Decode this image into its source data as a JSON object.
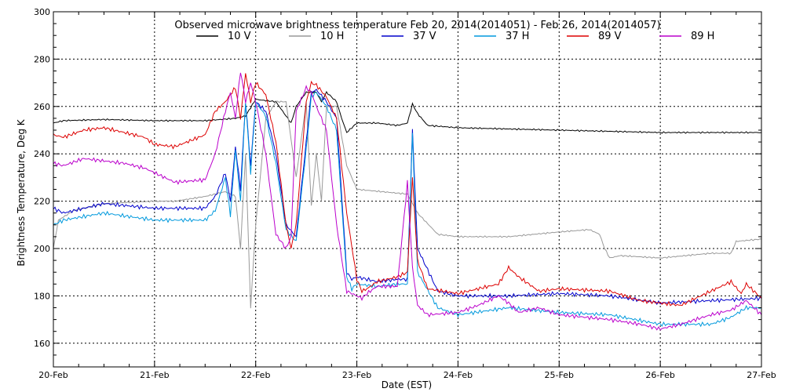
{
  "chart_data": {
    "type": "line",
    "title": "Observed microwave brightness temperature Feb 20, 2014(2014051) - Feb 26, 2014(2014057)",
    "xlabel": "Date (EST)",
    "ylabel": "Brightness Temperature, Deg K",
    "x_tick_labels": [
      "20-Feb",
      "21-Feb",
      "22-Feb",
      "23-Feb",
      "24-Feb",
      "25-Feb",
      "26-Feb",
      "27-Feb"
    ],
    "x_unit": "days since 20-Feb 00:00",
    "xlim": [
      0,
      7
    ],
    "ylim": [
      150,
      300
    ],
    "y_ticks": [
      160,
      180,
      200,
      220,
      240,
      260,
      280,
      300
    ],
    "grid": true,
    "legend_position": "top",
    "series": [
      {
        "name": "10 V",
        "color": "#000000",
        "x": [
          0,
          0.1,
          0.5,
          1,
          1.5,
          1.8,
          1.9,
          2,
          2.2,
          2.3,
          2.35,
          2.4,
          2.5,
          2.6,
          2.65,
          2.7,
          2.75,
          2.8,
          2.85,
          2.9,
          3,
          3.2,
          3.4,
          3.5,
          3.55,
          3.6,
          3.7,
          4,
          5,
          6,
          6.5,
          7
        ],
        "y": [
          253,
          254,
          254.5,
          254,
          254,
          255,
          256,
          263,
          262,
          256,
          253,
          260,
          266,
          266,
          262,
          266,
          264,
          262,
          255,
          249,
          253,
          253,
          252,
          253,
          261,
          257,
          252,
          251,
          250,
          249,
          249,
          249
        ]
      },
      {
        "name": "10 H",
        "color": "#999999",
        "x": [
          0,
          0.05,
          0.2,
          0.5,
          1,
          1.2,
          1.5,
          1.7,
          1.8,
          1.85,
          1.9,
          1.95,
          2,
          2.1,
          2.2,
          2.3,
          2.4,
          2.5,
          2.55,
          2.6,
          2.65,
          2.7,
          2.8,
          2.9,
          3,
          3.5,
          3.6,
          3.8,
          4,
          4.5,
          5,
          5.3,
          5.4,
          5.45,
          5.5,
          5.6,
          6,
          6.5,
          6.7,
          6.75,
          7
        ],
        "y": [
          200,
          212,
          216,
          219,
          220,
          220,
          222,
          224,
          222,
          200,
          240,
          175,
          210,
          255,
          262,
          262,
          230,
          262,
          218,
          240,
          220,
          260,
          260,
          235,
          225,
          223,
          215,
          206,
          205,
          205,
          207,
          208,
          206,
          200,
          196,
          197,
          196,
          198,
          198,
          203,
          204
        ]
      },
      {
        "name": "37 V",
        "color": "#0000cc",
        "x": [
          0,
          0.1,
          0.5,
          1,
          1.5,
          1.6,
          1.7,
          1.75,
          1.8,
          1.85,
          1.9,
          1.95,
          2,
          2.1,
          2.2,
          2.3,
          2.4,
          2.5,
          2.55,
          2.6,
          2.7,
          2.8,
          2.9,
          2.95,
          3,
          3.2,
          3.4,
          3.5,
          3.55,
          3.6,
          3.8,
          4,
          4.5,
          5,
          5.5,
          6,
          6.5,
          7
        ],
        "y": [
          217,
          215,
          219,
          217,
          217,
          222,
          232,
          220,
          243,
          225,
          262,
          235,
          262,
          258,
          240,
          210,
          205,
          245,
          266,
          267,
          262,
          255,
          190,
          187,
          188,
          186,
          187,
          187,
          250,
          200,
          182,
          180,
          180,
          181,
          180,
          177,
          178,
          179
        ]
      },
      {
        "name": "37 H",
        "color": "#0099dd",
        "x": [
          0,
          0.1,
          0.5,
          1,
          1.5,
          1.6,
          1.7,
          1.75,
          1.8,
          1.85,
          1.9,
          1.95,
          2,
          2.1,
          2.2,
          2.3,
          2.4,
          2.5,
          2.55,
          2.6,
          2.7,
          2.8,
          2.9,
          2.95,
          3,
          3.2,
          3.4,
          3.5,
          3.55,
          3.6,
          3.8,
          4,
          4.5,
          5,
          5.5,
          6,
          6.5,
          6.7,
          6.85,
          7
        ],
        "y": [
          210,
          212,
          215,
          212,
          212,
          216,
          230,
          214,
          242,
          220,
          262,
          232,
          262,
          256,
          236,
          208,
          203,
          242,
          264,
          266,
          260,
          250,
          188,
          183,
          185,
          184,
          185,
          185,
          248,
          190,
          175,
          172,
          175,
          173,
          172,
          168,
          168,
          171,
          175,
          175
        ]
      },
      {
        "name": "89 V",
        "color": "#dd0000",
        "x": [
          0,
          0.1,
          0.3,
          0.5,
          0.7,
          0.9,
          1,
          1.2,
          1.5,
          1.6,
          1.7,
          1.8,
          1.85,
          1.9,
          1.95,
          2,
          2.1,
          2.2,
          2.3,
          2.35,
          2.4,
          2.5,
          2.55,
          2.6,
          2.7,
          2.8,
          2.9,
          3,
          3.05,
          3.1,
          3.2,
          3.4,
          3.5,
          3.55,
          3.6,
          3.7,
          4,
          4.2,
          4.4,
          4.5,
          4.6,
          4.8,
          5,
          5.5,
          5.8,
          6,
          6.2,
          6.5,
          6.7,
          6.8,
          6.85,
          7
        ],
        "y": [
          248,
          247,
          250,
          251,
          249,
          247,
          244,
          243,
          248,
          258,
          262,
          268,
          255,
          274,
          262,
          270,
          265,
          245,
          210,
          200,
          210,
          262,
          270,
          269,
          264,
          255,
          215,
          187,
          182,
          183,
          186,
          188,
          190,
          230,
          195,
          183,
          181,
          183,
          185,
          192,
          188,
          182,
          183,
          182,
          178,
          177,
          176,
          182,
          186,
          181,
          185,
          179
        ]
      },
      {
        "name": "89 H",
        "color": "#bb00cc",
        "x": [
          0,
          0.1,
          0.3,
          0.5,
          0.7,
          0.9,
          1,
          1.2,
          1.5,
          1.6,
          1.7,
          1.75,
          1.8,
          1.85,
          1.9,
          1.95,
          2,
          2.1,
          2.2,
          2.3,
          2.35,
          2.4,
          2.5,
          2.55,
          2.6,
          2.7,
          2.8,
          2.9,
          3,
          3.05,
          3.1,
          3.2,
          3.4,
          3.5,
          3.55,
          3.6,
          3.7,
          4,
          4.2,
          4.4,
          4.5,
          4.6,
          4.8,
          5,
          5.5,
          5.8,
          6,
          6.2,
          6.5,
          6.7,
          6.85,
          7
        ],
        "y": [
          236,
          235,
          238,
          237,
          236,
          234,
          232,
          228,
          229,
          240,
          258,
          266,
          255,
          275,
          262,
          270,
          262,
          240,
          206,
          200,
          205,
          258,
          268,
          266,
          260,
          250,
          210,
          182,
          180,
          179,
          181,
          184,
          184,
          228,
          192,
          176,
          172,
          173,
          176,
          180,
          177,
          173,
          175,
          172,
          170,
          168,
          166,
          168,
          172,
          174,
          178,
          172
        ]
      }
    ]
  }
}
